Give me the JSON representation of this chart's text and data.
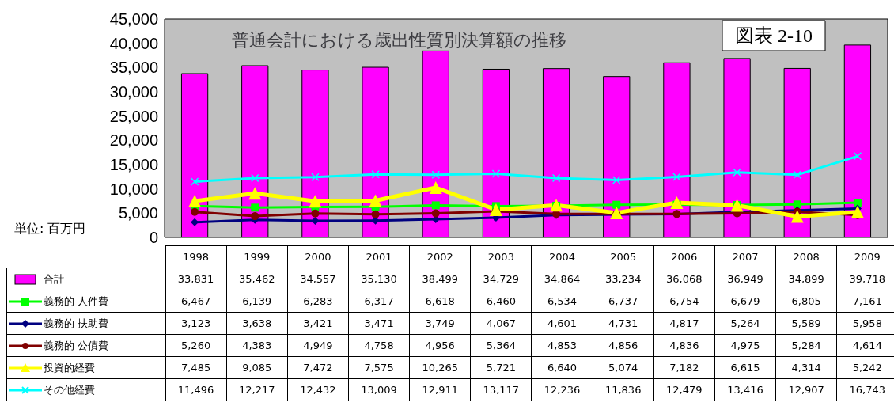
{
  "chart_data": {
    "type": "bar",
    "title": "普通会計における歳出性質別決算額の推移",
    "annotations": [
      "図表 2-10",
      "単位: 百万円"
    ],
    "categories": [
      "1998",
      "1999",
      "2000",
      "2001",
      "2002",
      "2003",
      "2004",
      "2005",
      "2006",
      "2007",
      "2008",
      "2009"
    ],
    "series": [
      {
        "name": "合計",
        "color": "#ff00ff",
        "values": [
          33831,
          35462,
          34557,
          35130,
          38499,
          34729,
          34864,
          33234,
          36068,
          36949,
          34899,
          39718
        ],
        "value_labels": [
          "33,831",
          "35,462",
          "34,557",
          "35,130",
          "38,499",
          "34,729",
          "34,864",
          "33,234",
          "36,068",
          "36,949",
          "34,899",
          "39,718"
        ]
      },
      {
        "name": "義務的 人件費",
        "type": "line",
        "color": "#00ff00",
        "marker": "square",
        "values": [
          6467,
          6139,
          6283,
          6317,
          6618,
          6460,
          6534,
          6737,
          6754,
          6679,
          6805,
          7161
        ],
        "value_labels": [
          "6,467",
          "6,139",
          "6,283",
          "6,317",
          "6,618",
          "6,460",
          "6,534",
          "6,737",
          "6,754",
          "6,679",
          "6,805",
          "7,161"
        ]
      },
      {
        "name": "義務的 扶助費",
        "type": "line",
        "color": "#000080",
        "marker": "diamond",
        "values": [
          3123,
          3638,
          3421,
          3471,
          3749,
          4067,
          4601,
          4731,
          4817,
          5264,
          5589,
          5958
        ],
        "value_labels": [
          "3,123",
          "3,638",
          "3,421",
          "3,471",
          "3,749",
          "4,067",
          "4,601",
          "4,731",
          "4,817",
          "5,264",
          "5,589",
          "5,958"
        ]
      },
      {
        "name": "義務的 公債費",
        "type": "line",
        "color": "#800000",
        "marker": "circle",
        "values": [
          5260,
          4383,
          4949,
          4758,
          4956,
          5364,
          4853,
          4856,
          4836,
          4975,
          5284,
          4614
        ],
        "value_labels": [
          "5,260",
          "4,383",
          "4,949",
          "4,758",
          "4,956",
          "5,364",
          "4,853",
          "4,856",
          "4,836",
          "4,975",
          "5,284",
          "4,614"
        ]
      },
      {
        "name": "投資的経費",
        "type": "line",
        "color": "#ffff00",
        "marker": "triangle",
        "values": [
          7485,
          9085,
          7472,
          7575,
          10265,
          5721,
          6640,
          5074,
          7182,
          6615,
          4314,
          5242
        ],
        "value_labels": [
          "7,485",
          "9,085",
          "7,472",
          "7,575",
          "10,265",
          "5,721",
          "6,640",
          "5,074",
          "7,182",
          "6,615",
          "4,314",
          "5,242"
        ]
      },
      {
        "name": "その他経費",
        "type": "line",
        "color": "#00ffff",
        "marker": "cross",
        "values": [
          11496,
          12217,
          12432,
          13009,
          12911,
          13117,
          12236,
          11836,
          12479,
          13416,
          12907,
          16743
        ],
        "value_labels": [
          "11,496",
          "12,217",
          "12,432",
          "13,009",
          "12,911",
          "13,117",
          "12,236",
          "11,836",
          "12,479",
          "13,416",
          "12,907",
          "16,743"
        ]
      }
    ],
    "ylim": [
      0,
      45000
    ],
    "yticks": [
      0,
      {
        "value": 5000,
        "label": "5,000"
      },
      {
        "value": 10000,
        "label": "10,000"
      },
      {
        "value": 15000,
        "label": "15,000"
      },
      {
        "value": 20000,
        "label": "20,000"
      },
      {
        "value": 25000,
        "label": "25,000"
      },
      {
        "value": 30000,
        "label": "30,000"
      },
      {
        "value": 35000,
        "label": "35,000"
      },
      {
        "value": 40000,
        "label": "40,000"
      },
      {
        "value": 45000,
        "label": "45,000"
      }
    ],
    "grid": false,
    "legend": "bottom"
  }
}
